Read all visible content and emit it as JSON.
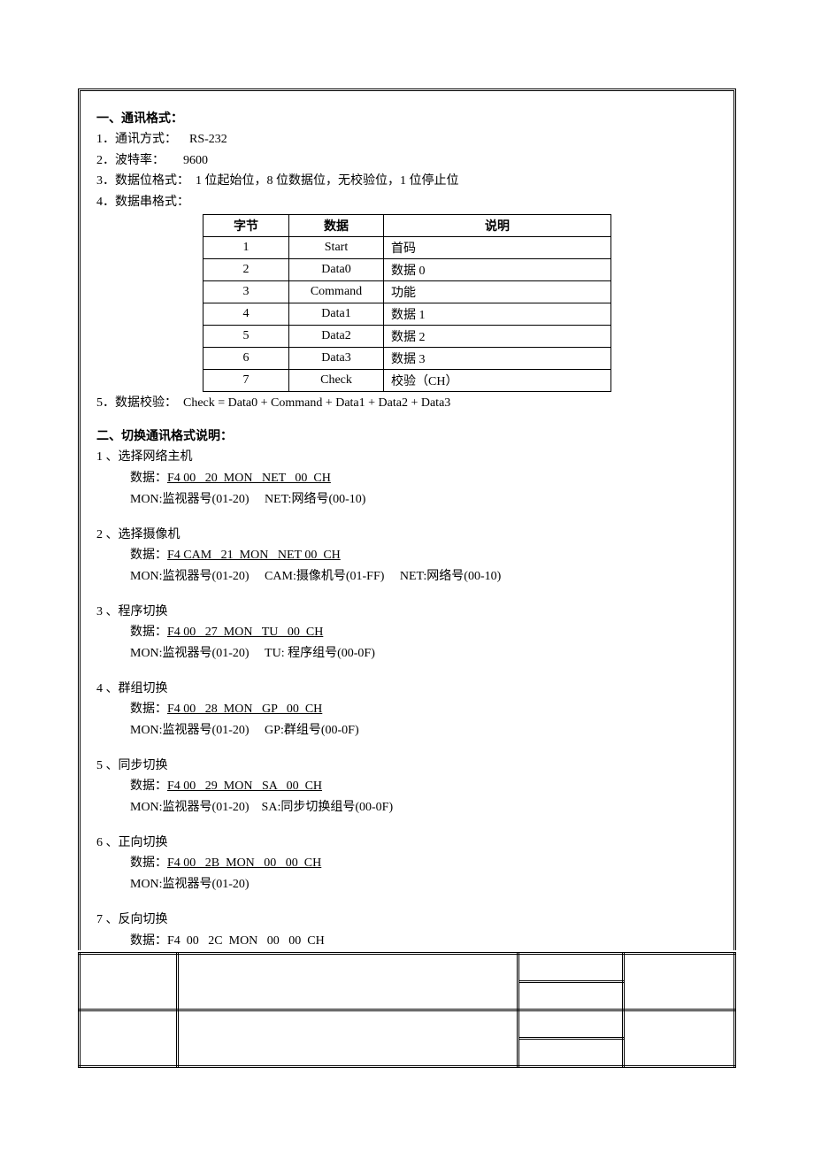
{
  "section1": {
    "title": "一、通讯格式：",
    "items": [
      {
        "num": "1．",
        "label": "通讯方式：",
        "value": "RS-232"
      },
      {
        "num": "2．",
        "label": "波特率：",
        "value": "9600"
      },
      {
        "num": "3．",
        "label": "数据位格式：",
        "value": "1 位起始位，8 位数据位，无校验位，1 位停止位"
      },
      {
        "num": "4．",
        "label": "数据串格式：",
        "value": ""
      }
    ],
    "table": {
      "headers": [
        "字节",
        "数据",
        "说明"
      ],
      "rows": [
        [
          "1",
          "Start",
          "首码"
        ],
        [
          "2",
          "Data0",
          "数据 0"
        ],
        [
          "3",
          "Command",
          "功能"
        ],
        [
          "4",
          "Data1",
          "数据 1"
        ],
        [
          "5",
          "Data2",
          "数据 2"
        ],
        [
          "6",
          "Data3",
          "数据 3"
        ],
        [
          "7",
          "Check",
          "校验（CH）"
        ]
      ]
    },
    "check_line": {
      "num": "5．",
      "label": "数据校验：",
      "value": "Check = Data0 + Command + Data1 + Data2 + Data3"
    }
  },
  "section2": {
    "title": "二、切换通讯格式说明：",
    "cmds": [
      {
        "num": "1 、",
        "name": "选择网络主机",
        "data_prefix": "数据：",
        "data": "F4 00   20  MON   NET   00  CH",
        "note": "MON:监视器号(01-20)     NET:网络号(00-10)"
      },
      {
        "num": "2 、",
        "name": "选择摄像机",
        "data_prefix": "数据：",
        "data": "F4 CAM   21  MON   NET 00  CH",
        "note": "MON:监视器号(01-20)     CAM:摄像机号(01-FF)     NET:网络号(00-10)"
      },
      {
        "num": "3 、",
        "name": "程序切换",
        "data_prefix": "数据：",
        "data": "F4 00   27  MON   TU   00  CH",
        "note": "MON:监视器号(01-20)     TU: 程序组号(00-0F)"
      },
      {
        "num": "4 、",
        "name": "群组切换",
        "data_prefix": "数据：",
        "data": "F4 00   28  MON   GP   00  CH",
        "note": "MON:监视器号(01-20)     GP:群组号(00-0F)"
      },
      {
        "num": "5 、",
        "name": "同步切换",
        "data_prefix": "数据：",
        "data": "F4 00   29  MON   SA   00  CH",
        "note": "MON:监视器号(01-20)    SA:同步切换组号(00-0F)"
      },
      {
        "num": "6 、",
        "name": "正向切换",
        "data_prefix": "数据：",
        "data": "F4 00   2B  MON   00   00  CH",
        "note": "MON:监视器号(01-20)"
      },
      {
        "num": "7 、",
        "name": "反向切换",
        "data_prefix": "数据：",
        "data": "F4  00   2C  MON   00   00  CH",
        "note": ""
      }
    ]
  }
}
